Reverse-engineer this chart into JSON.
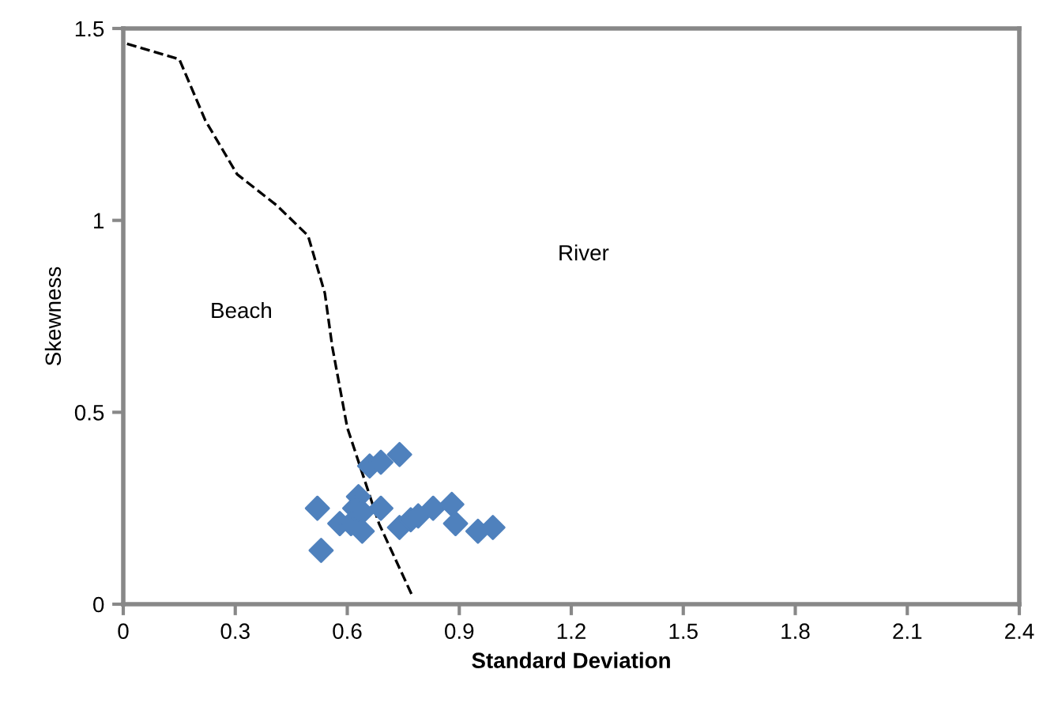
{
  "chart_data": {
    "type": "scatter",
    "xlabel": "Standard Deviation",
    "ylabel": "Skewness",
    "xlim": [
      0,
      2.4
    ],
    "xticks": [
      0,
      0.3,
      0.6,
      0.9,
      1.2,
      1.5,
      1.8,
      2.1,
      2.4
    ],
    "ylim": [
      0,
      1.5
    ],
    "yticks": [
      0,
      0.5,
      1,
      1.5
    ],
    "grid": false,
    "legend": false,
    "series": [
      {
        "marker": "diamond",
        "color": "#4f81bd",
        "x": [
          0.52,
          0.53,
          0.58,
          0.61,
          0.63,
          0.62,
          0.64,
          0.64,
          0.69,
          0.66,
          0.69,
          0.74,
          0.74,
          0.77,
          0.79,
          0.83,
          0.88,
          0.89,
          0.95,
          0.99
        ],
        "values": [
          0.25,
          0.14,
          0.21,
          0.21,
          0.28,
          0.25,
          0.24,
          0.19,
          0.25,
          0.36,
          0.37,
          0.39,
          0.2,
          0.22,
          0.23,
          0.25,
          0.26,
          0.21,
          0.19,
          0.2
        ]
      },
      {
        "type": "line",
        "line_style": "dashed",
        "marker": "none",
        "color": "#000000",
        "x": [
          0.01,
          0.15,
          0.22,
          0.305,
          0.41,
          0.495,
          0.54,
          0.56,
          0.6,
          0.685,
          0.775
        ],
        "values": [
          1.46,
          1.42,
          1.26,
          1.12,
          1.04,
          0.96,
          0.81,
          0.67,
          0.46,
          0.21,
          0.02
        ]
      }
    ],
    "annotations": [
      "Beach",
      "River"
    ]
  }
}
